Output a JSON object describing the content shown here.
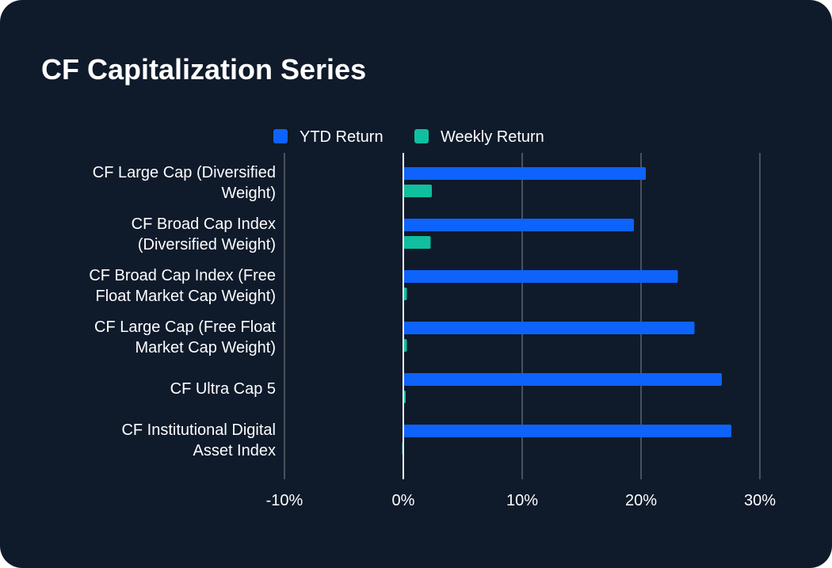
{
  "chart_data": {
    "type": "bar",
    "orientation": "horizontal",
    "title": "CF Capitalization Series",
    "categories": [
      [
        "CF Large Cap (Diversified",
        "Weight)"
      ],
      [
        "CF Broad Cap Index",
        "(Diversified Weight)"
      ],
      [
        "CF Broad Cap Index (Free",
        "Float Market Cap Weight)"
      ],
      [
        "CF Large Cap (Free Float",
        "Market Cap Weight)"
      ],
      [
        "CF Ultra Cap 5"
      ],
      [
        "CF Institutional Digital",
        "Asset Index"
      ]
    ],
    "series": [
      {
        "name": "YTD Return",
        "color": "#0d63fc",
        "values": [
          20.4,
          19.4,
          23.1,
          24.5,
          26.8,
          27.6
        ]
      },
      {
        "name": "Weekly Return",
        "color": "#0fbf9f",
        "values": [
          2.4,
          2.3,
          0.3,
          0.3,
          0.2,
          -0.1
        ]
      }
    ],
    "xlim": [
      -10,
      30
    ],
    "xticks": [
      -10,
      0,
      10,
      20,
      30
    ],
    "xtick_labels": [
      "-10%",
      "0%",
      "10%",
      "20%",
      "30%"
    ],
    "xlabel": "",
    "ylabel": "",
    "grid": true,
    "legend": "top-center",
    "colors": {
      "background": "#0f1a2b",
      "grid": "#4a515c",
      "zero_line": "#ffffff",
      "text": "#ffffff"
    }
  }
}
